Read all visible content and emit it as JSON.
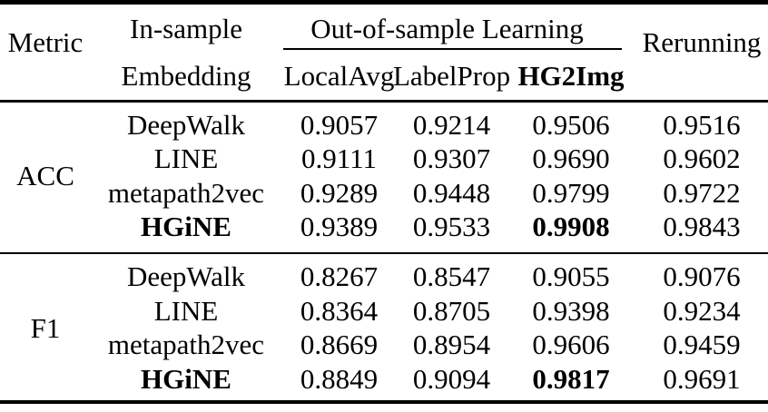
{
  "page": {
    "background": "#ffffff",
    "text_color": "#000000",
    "rule_color": "#000000"
  },
  "table": {
    "header": {
      "metric": "Metric",
      "in_sample_line1": "In-sample",
      "in_sample_line2": "Embedding",
      "out_of_sample_group": "Out-of-sample Learning",
      "methods": [
        "LocalAvg",
        "LabelProp",
        "HG2Img"
      ],
      "rerunning": "Rerunning"
    },
    "sections": [
      {
        "metric": "ACC",
        "rows": [
          {
            "embedding": "DeepWalk",
            "values": [
              "0.9057",
              "0.9214",
              "0.9506",
              "0.9516"
            ]
          },
          {
            "embedding": "LINE",
            "values": [
              "0.9111",
              "0.9307",
              "0.9690",
              "0.9602"
            ]
          },
          {
            "embedding": "metapath2vec",
            "values": [
              "0.9289",
              "0.9448",
              "0.9799",
              "0.9722"
            ]
          },
          {
            "embedding": "HGiNE",
            "values": [
              "0.9389",
              "0.9533",
              "0.9908",
              "0.9843"
            ]
          }
        ]
      },
      {
        "metric": "F1",
        "rows": [
          {
            "embedding": "DeepWalk",
            "values": [
              "0.8267",
              "0.8547",
              "0.9055",
              "0.9076"
            ]
          },
          {
            "embedding": "LINE",
            "values": [
              "0.8364",
              "0.8705",
              "0.9398",
              "0.9234"
            ]
          },
          {
            "embedding": "metapath2vec",
            "values": [
              "0.8669",
              "0.8954",
              "0.9606",
              "0.9459"
            ]
          },
          {
            "embedding": "HGiNE",
            "values": [
              "0.8849",
              "0.9094",
              "0.9817",
              "0.9691"
            ]
          }
        ]
      }
    ]
  }
}
